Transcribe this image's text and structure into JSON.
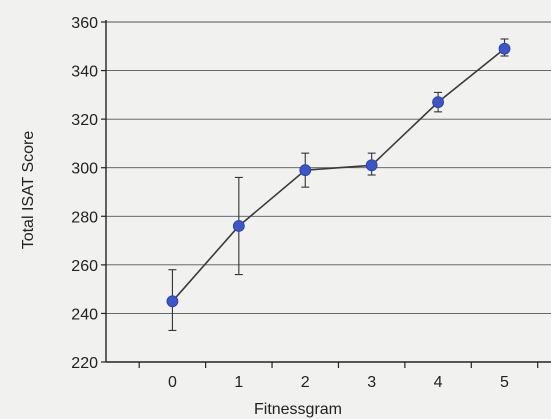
{
  "chart_data": {
    "type": "line",
    "title": "",
    "xlabel": "Fitnessgram",
    "ylabel": "Total ISAT Score",
    "x": [
      0,
      1,
      2,
      3,
      4,
      5
    ],
    "xlim": [
      -1,
      5.7
    ],
    "ylim": [
      220,
      360
    ],
    "yticks": [
      220,
      240,
      260,
      280,
      300,
      320,
      340,
      360
    ],
    "xticks": [
      0,
      1,
      2,
      3,
      4,
      5
    ],
    "grid": true,
    "legend": "none",
    "series": [
      {
        "values": [
          245,
          276,
          299,
          301,
          327,
          349
        ],
        "error_low": [
          233,
          256,
          292,
          297,
          323,
          346
        ],
        "error_high": [
          258,
          296,
          306,
          306,
          331,
          353
        ],
        "marker_color": "#3a56c8",
        "line_color": "#3b3b3b"
      }
    ]
  }
}
